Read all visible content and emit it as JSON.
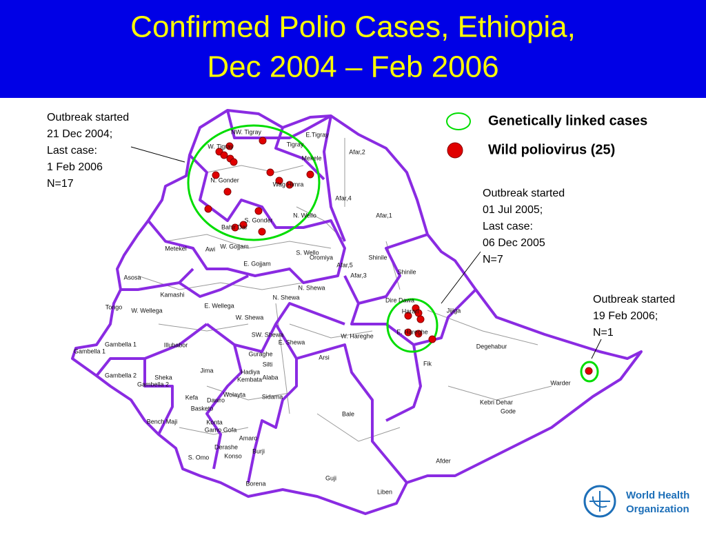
{
  "header": {
    "title_lines": [
      "Confirmed Polio Cases, Ethiopia,",
      "Dec 2004 – Feb 2006"
    ]
  },
  "legend": {
    "items": [
      "Genetically linked cases",
      "Wild poliovirus (25)"
    ]
  },
  "annotations": [
    {
      "lines": [
        "Outbreak started",
        "21 Dec 2004;",
        "Last case:",
        "1 Feb 2006",
        "N=17"
      ]
    },
    {
      "lines": [
        "Outbreak started",
        "01 Jul 2005;",
        "Last case:",
        "06 Dec 2005",
        "N=7"
      ]
    },
    {
      "lines": [
        "Outbreak started",
        "19 Feb 2006;",
        "N=1"
      ]
    }
  ],
  "zones": [
    "NW. Tigray",
    "W. Tigray",
    "E.Tigray",
    "Tigray",
    "Mekele",
    "N. Gonder",
    "Wag Himra",
    "Afar,2",
    "Afar,4",
    "Afar,1",
    "N. Wello",
    "S. Gonder",
    "Bahir Dar",
    "Metekel",
    "Awi",
    "W. Gojjam",
    "S. Wello",
    "Oromiya",
    "Afar,5",
    "Shinile",
    "Shinile",
    "E. Gojjam",
    "Afar,3",
    "Asosa",
    "N. Shewa",
    "Kamashi",
    "Tongo",
    "W. Wellega",
    "E. Wellega",
    "N. Shewa",
    "Dire Dawa",
    "Harari",
    "Jijiga",
    "W. Shewa",
    "SW. Shewa",
    "E. Shewa",
    "W. Hareghe",
    "E. Hareghe",
    "Gambella 1",
    "Illubabor",
    "Degehabur",
    "Gambella 1",
    "Guraghe",
    "Silti",
    "Arsi",
    "Fik",
    "Jima",
    "Hadiya",
    "Kembata",
    "Alaba",
    "Gambella 2",
    "Sheka",
    "Gambella 2",
    "Wolayta",
    "Sidama",
    "Kefa",
    "Dawro",
    "Bale",
    "Warder",
    "Kebri Dehar",
    "Gode",
    "Basketo",
    "Bench Maji",
    "Konta",
    "Gamo Gofa",
    "Amaro",
    "Derashe",
    "Burji",
    "S. Omo",
    "Konso",
    "Afder",
    "Guji",
    "Borena",
    "Liben"
  ],
  "logo": {
    "lines": [
      "World Health",
      "Organization"
    ]
  }
}
